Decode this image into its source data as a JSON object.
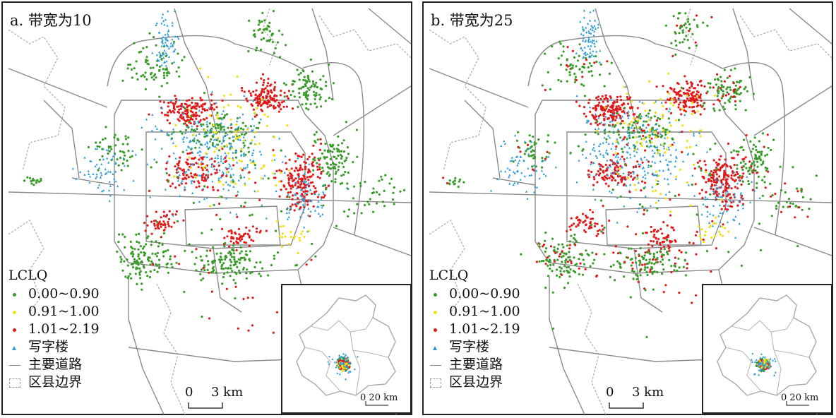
{
  "panels": [
    {
      "id": "a",
      "title": "a. 带宽为10",
      "seed": 11
    },
    {
      "id": "b",
      "title": "b. 带宽为25",
      "seed": 29
    }
  ],
  "legend": {
    "title": "LCLQ",
    "items": [
      {
        "label": "0.00~0.90",
        "color": "#3a9a2a",
        "symbol": "dot"
      },
      {
        "label": "0.91~1.00",
        "color": "#f2e01a",
        "symbol": "dot"
      },
      {
        "label": "1.01~2.19",
        "color": "#e01b1b",
        "symbol": "dot"
      },
      {
        "label": "写字楼",
        "color": "#2f9bd6",
        "symbol": "triangle"
      },
      {
        "label": "主要道路",
        "color": "#8a8a8a",
        "symbol": "line"
      },
      {
        "label": "区县边界",
        "color": "#9a9a9a",
        "symbol": "dashed-box"
      }
    ]
  },
  "scale_bar": {
    "zero": "0",
    "value": "3 km"
  },
  "inset_scale_bar": {
    "zero": "0",
    "value": "20 km"
  }
}
